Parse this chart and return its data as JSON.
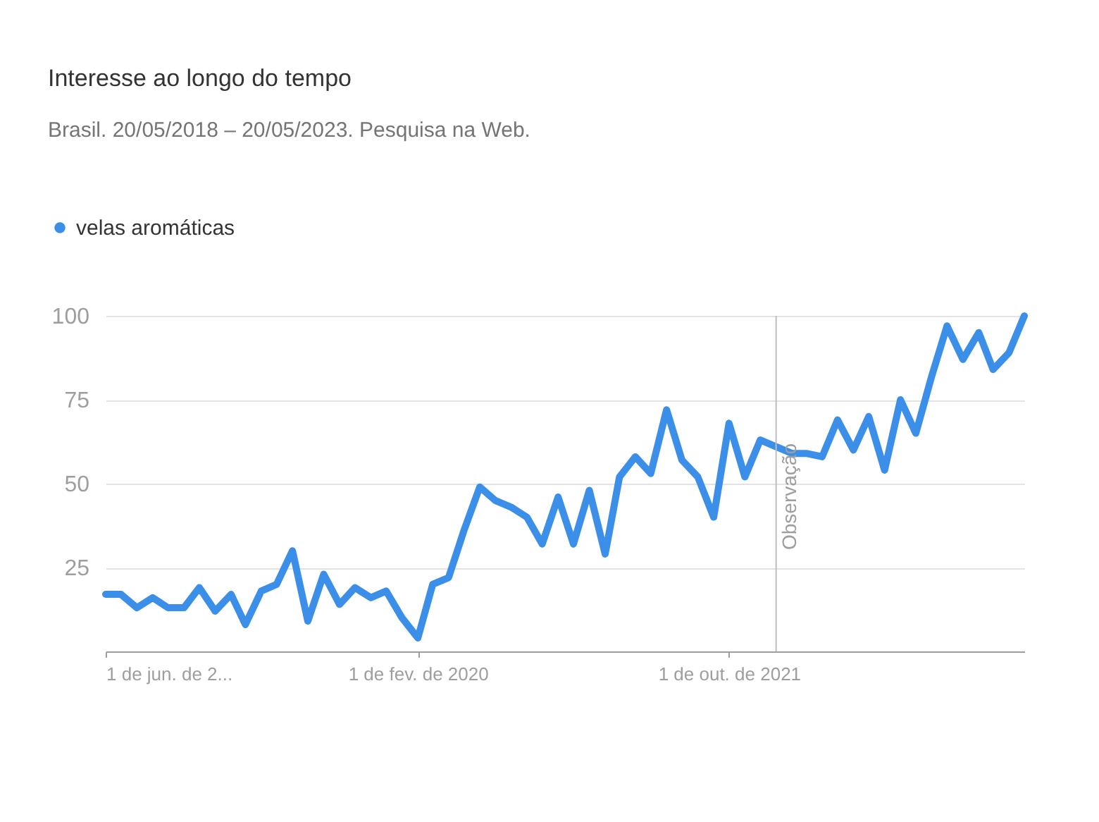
{
  "chart_data": {
    "type": "line",
    "title": "Interesse ao longo do tempo",
    "subtitle": "Brasil. 20/05/2018 – 20/05/2023. Pesquisa na Web.",
    "x": [
      "2018-06",
      "2018-07",
      "2018-08",
      "2018-09",
      "2018-10",
      "2018-11",
      "2018-12",
      "2019-01",
      "2019-02",
      "2019-03",
      "2019-04",
      "2019-05",
      "2019-06",
      "2019-07",
      "2019-08",
      "2019-09",
      "2019-10",
      "2019-11",
      "2019-12",
      "2020-01",
      "2020-02",
      "2020-03",
      "2020-04",
      "2020-05",
      "2020-06",
      "2020-07",
      "2020-08",
      "2020-09",
      "2020-10",
      "2020-11",
      "2020-12",
      "2021-01",
      "2021-02",
      "2021-03",
      "2021-04",
      "2021-05",
      "2021-06",
      "2021-07",
      "2021-08",
      "2021-09",
      "2021-10",
      "2021-11",
      "2021-12",
      "2022-01",
      "2022-02",
      "2022-03",
      "2022-04",
      "2022-05",
      "2022-06",
      "2022-07",
      "2022-08",
      "2022-09",
      "2022-10",
      "2022-11",
      "2022-12",
      "2023-01",
      "2023-02",
      "2023-03",
      "2023-04",
      "2023-05"
    ],
    "series": [
      {
        "name": "velas aromáticas",
        "color": "#3b8fe8",
        "values": [
          17,
          17,
          13,
          16,
          13,
          13,
          19,
          12,
          17,
          8,
          18,
          20,
          30,
          9,
          23,
          14,
          19,
          16,
          18,
          10,
          4,
          20,
          22,
          36,
          49,
          45,
          43,
          40,
          32,
          46,
          32,
          48,
          29,
          52,
          58,
          53,
          72,
          57,
          52,
          40,
          68,
          52,
          63,
          61,
          59,
          59,
          58,
          69,
          60,
          70,
          54,
          75,
          65,
          82,
          97,
          87,
          95,
          84,
          89,
          100
        ]
      }
    ],
    "xlim": [
      "2018-06",
      "2023-05"
    ],
    "xticks": [
      {
        "value": "2018-06",
        "label": "1 de jun. de 2..."
      },
      {
        "value": "2020-02",
        "label": "1 de fev. de 2020"
      },
      {
        "value": "2021-10",
        "label": "1 de out. de 2021"
      }
    ],
    "ylim": [
      0,
      100
    ],
    "yticks": [
      25,
      50,
      75,
      100
    ],
    "grid": "y",
    "legend": "top left",
    "marker": "none",
    "line_style": "solid",
    "ref_lines": [
      {
        "axis": "x",
        "value": "2022-01",
        "label": "Observação",
        "color": "#bdbdbd"
      }
    ]
  }
}
